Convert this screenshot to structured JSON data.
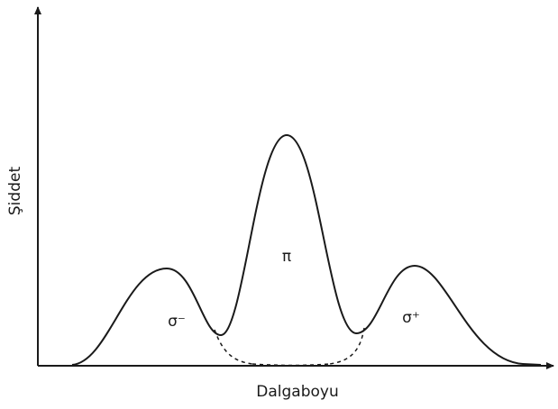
{
  "axes": {
    "y_label": "Şiddet",
    "x_label": "Dalgaboyu"
  },
  "peaks": [
    {
      "label": "σ⁻"
    },
    {
      "label": "π"
    },
    {
      "label": "σ⁺"
    }
  ]
}
